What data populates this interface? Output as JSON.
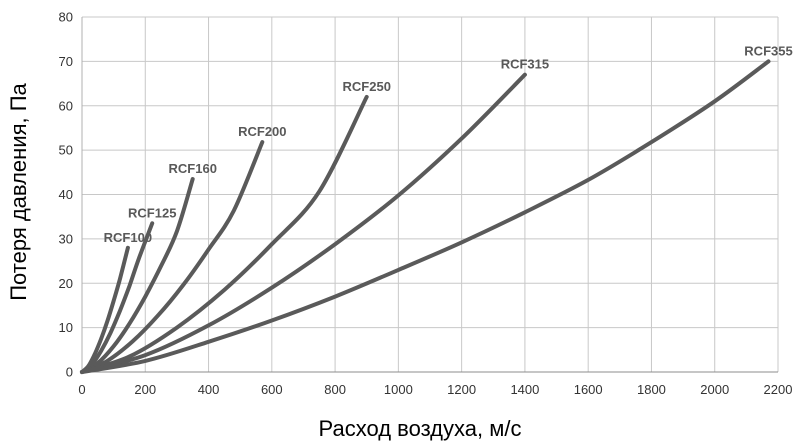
{
  "chart_data": {
    "type": "line",
    "title": "",
    "xlabel": "Расход воздуха, м/с",
    "ylabel": "Потеря давления, Па",
    "xlim": [
      0,
      2200
    ],
    "ylim": [
      0,
      80
    ],
    "x_ticks": [
      0,
      200,
      400,
      600,
      800,
      1000,
      1200,
      1400,
      1600,
      1800,
      2000,
      2200
    ],
    "y_ticks": [
      0,
      10,
      20,
      30,
      40,
      50,
      60,
      70,
      80
    ],
    "grid": true,
    "legend": "none",
    "line_color": "#5a5a5a",
    "grid_color": "#c8c8c8",
    "series": [
      {
        "name": "RCF100",
        "x": [
          0,
          20,
          40,
          60,
          80,
          100,
          120,
          145
        ],
        "y": [
          0,
          1.3,
          4.0,
          7.4,
          11.4,
          16.0,
          21.0,
          28.0
        ]
      },
      {
        "name": "RCF125",
        "x": [
          0,
          30,
          60,
          90,
          120,
          150,
          180,
          222
        ],
        "y": [
          0,
          1.6,
          4.7,
          8.8,
          13.8,
          19.4,
          25.6,
          33.5
        ]
      },
      {
        "name": "RCF160",
        "x": [
          0,
          50,
          100,
          150,
          200,
          250,
          300,
          350
        ],
        "y": [
          0,
          2.0,
          5.8,
          10.9,
          17.0,
          23.9,
          31.7,
          43.5
        ]
      },
      {
        "name": "RCF200",
        "x": [
          0,
          80,
          160,
          240,
          320,
          400,
          480,
          570
        ],
        "y": [
          0,
          2.5,
          6.9,
          12.7,
          19.6,
          27.6,
          36.4,
          51.8
        ]
      },
      {
        "name": "RCF250",
        "x": [
          0,
          150,
          300,
          450,
          600,
          750,
          900
        ],
        "y": [
          0,
          3.5,
          10.0,
          18.5,
          28.8,
          40.7,
          62.0
        ]
      },
      {
        "name": "RCF315",
        "x": [
          0,
          200,
          400,
          600,
          800,
          1000,
          1200,
          1400
        ],
        "y": [
          0,
          3.8,
          10.5,
          19.0,
          28.8,
          39.8,
          52.6,
          67.0
        ]
      },
      {
        "name": "RCF355",
        "x": [
          0,
          200,
          400,
          600,
          800,
          1000,
          1200,
          1400,
          1600,
          1800,
          2000,
          2170
        ],
        "y": [
          0,
          2.5,
          6.8,
          11.6,
          17.0,
          23.0,
          29.2,
          36.0,
          43.3,
          51.8,
          61.0,
          70.0
        ]
      }
    ]
  }
}
